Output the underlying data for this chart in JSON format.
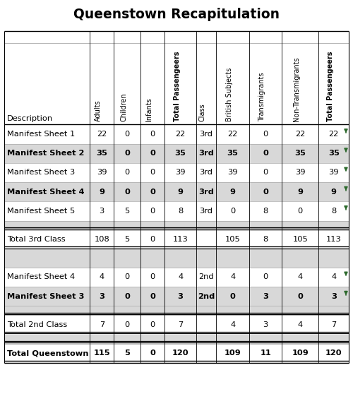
{
  "title": "Queenstown Recapitulation",
  "header_rotated": [
    "Adults",
    "Children",
    "Infants",
    "Total Passengeers",
    "Class",
    "British Subjects",
    "Transmigrants",
    "Non-Transmigrants",
    "Total Passengeers"
  ],
  "rows": [
    {
      "label": "Manifest Sheet 1",
      "bold": false,
      "bg": "#ffffff",
      "vals": [
        "22",
        "0",
        "0",
        "22",
        "3rd",
        "22",
        "0",
        "22",
        "22"
      ],
      "arrow": true
    },
    {
      "label": "Manifest Sheet 2",
      "bold": true,
      "bg": "#d8d8d8",
      "vals": [
        "35",
        "0",
        "0",
        "35",
        "3rd",
        "35",
        "0",
        "35",
        "35"
      ],
      "arrow": true
    },
    {
      "label": "Manifest Sheet 3",
      "bold": false,
      "bg": "#ffffff",
      "vals": [
        "39",
        "0",
        "0",
        "39",
        "3rd",
        "39",
        "0",
        "39",
        "39"
      ],
      "arrow": true
    },
    {
      "label": "Manifest Sheet 4",
      "bold": true,
      "bg": "#d8d8d8",
      "vals": [
        "9",
        "0",
        "0",
        "9",
        "3rd",
        "9",
        "0",
        "9",
        "9"
      ],
      "arrow": true
    },
    {
      "label": "Manifest Sheet 5",
      "bold": false,
      "bg": "#ffffff",
      "vals": [
        "3",
        "5",
        "0",
        "8",
        "3rd",
        "0",
        "8",
        "0",
        "8"
      ],
      "arrow": true
    }
  ],
  "total3rd": {
    "label": "Total 3rd Class",
    "bold": false,
    "bg": "#ffffff",
    "vals": [
      "108",
      "5",
      "0",
      "113",
      "",
      "105",
      "8",
      "105",
      "113"
    ]
  },
  "rows2": [
    {
      "label": "Manifest Sheet 4",
      "bold": false,
      "bg": "#ffffff",
      "vals": [
        "4",
        "0",
        "0",
        "4",
        "2nd",
        "4",
        "0",
        "4",
        "4"
      ],
      "arrow": true
    },
    {
      "label": "Manifest Sheet 3",
      "bold": true,
      "bg": "#d8d8d8",
      "vals": [
        "3",
        "0",
        "0",
        "3",
        "2nd",
        "0",
        "3",
        "0",
        "3"
      ],
      "arrow": true
    }
  ],
  "total2nd": {
    "label": "Total 2nd Class",
    "bold": false,
    "bg": "#ffffff",
    "vals": [
      "7",
      "0",
      "0",
      "7",
      "",
      "4",
      "3",
      "4",
      "7"
    ]
  },
  "totalQT": {
    "label": "Total Queenstown",
    "bold": true,
    "bg": "#ffffff",
    "vals": [
      "115",
      "5",
      "0",
      "120",
      "",
      "109",
      "11",
      "109",
      "120"
    ]
  },
  "col_widths_rel": [
    1.85,
    0.52,
    0.58,
    0.52,
    0.68,
    0.43,
    0.72,
    0.7,
    0.8,
    0.65
  ],
  "arrow_color": "#2d6a2d",
  "bg_color": "#ffffff"
}
